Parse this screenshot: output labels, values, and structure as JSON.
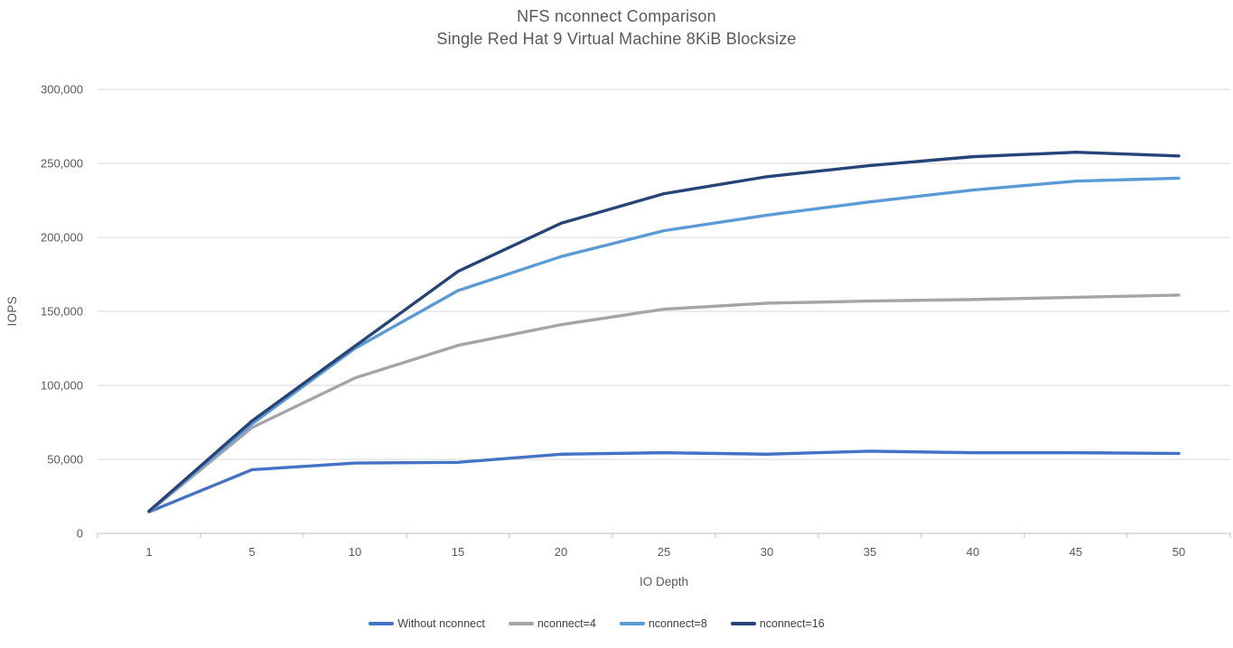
{
  "chart_data": {
    "type": "line",
    "title": "NFS nconnect Comparison",
    "subtitle": "Single Red Hat 9 Virtual Machine 8KiB Blocksize",
    "xlabel": "IO Depth",
    "ylabel": "IOPS",
    "x_categories": [
      "1",
      "5",
      "10",
      "15",
      "20",
      "25",
      "30",
      "35",
      "40",
      "45",
      "50"
    ],
    "ylim": [
      0,
      300000
    ],
    "ytick_step": 50000,
    "ytick_labels": [
      "0",
      "50,000",
      "100,000",
      "150,000",
      "200,000",
      "250,000",
      "300,000"
    ],
    "grid": "horizontal-major",
    "legend_position": "bottom",
    "colors": {
      "gridline": "#D9D9D9",
      "axis_line": "#BFBFBF",
      "tick_text": "#595959",
      "legend_text": "#404040"
    },
    "series": [
      {
        "name": "Without nconnect",
        "color": "#4472C4",
        "values": [
          14500,
          43000,
          47500,
          48000,
          53500,
          54500,
          53500,
          55500,
          54500,
          54500,
          54000
        ]
      },
      {
        "name": "nconnect=4",
        "color": "#A5A5A5",
        "values": [
          14500,
          71500,
          105000,
          127000,
          141000,
          151500,
          155500,
          157000,
          158000,
          159500,
          161000
        ]
      },
      {
        "name": "nconnect=8",
        "color": "#5B9BD5",
        "values": [
          15000,
          74000,
          125000,
          164000,
          187000,
          204500,
          215000,
          224000,
          232000,
          238000,
          240000
        ]
      },
      {
        "name": "nconnect=16",
        "color": "#264478",
        "values": [
          15000,
          76000,
          126500,
          177000,
          209500,
          229500,
          241000,
          248500,
          254500,
          257500,
          255000
        ]
      }
    ]
  }
}
